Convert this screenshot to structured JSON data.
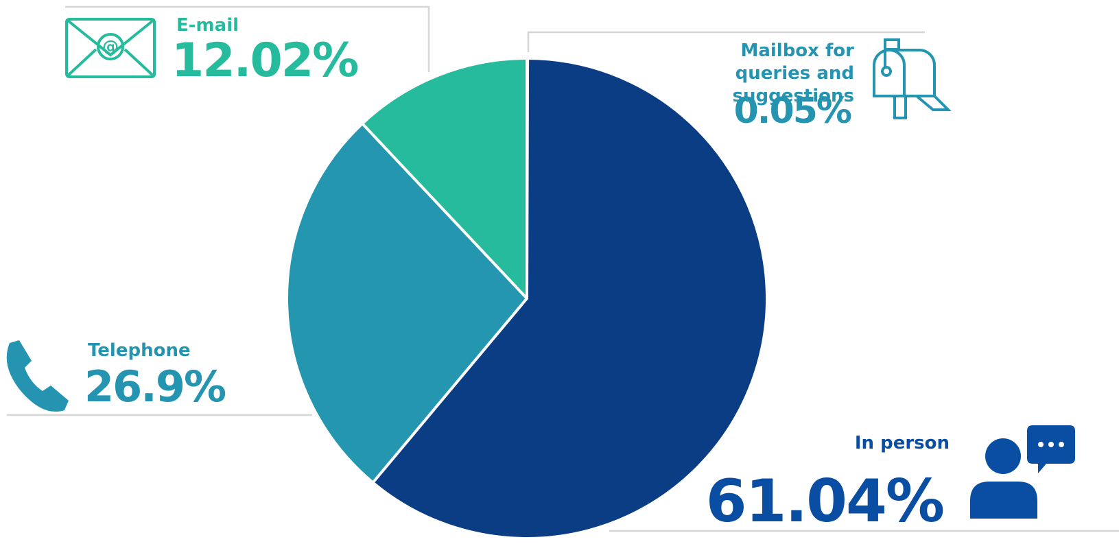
{
  "chart_data": {
    "type": "pie",
    "categories": [
      "Mailbox for queries and suggestions",
      "In person",
      "Telephone",
      "E-mail"
    ],
    "values": [
      0.05,
      61.04,
      26.9,
      12.02
    ],
    "value_labels": [
      "0.05%",
      "61.04%",
      "26.9%",
      "12.02%"
    ],
    "colors": [
      "#2a8fb0",
      "#0b3d84",
      "#2596b0",
      "#26bb9c"
    ]
  }
}
